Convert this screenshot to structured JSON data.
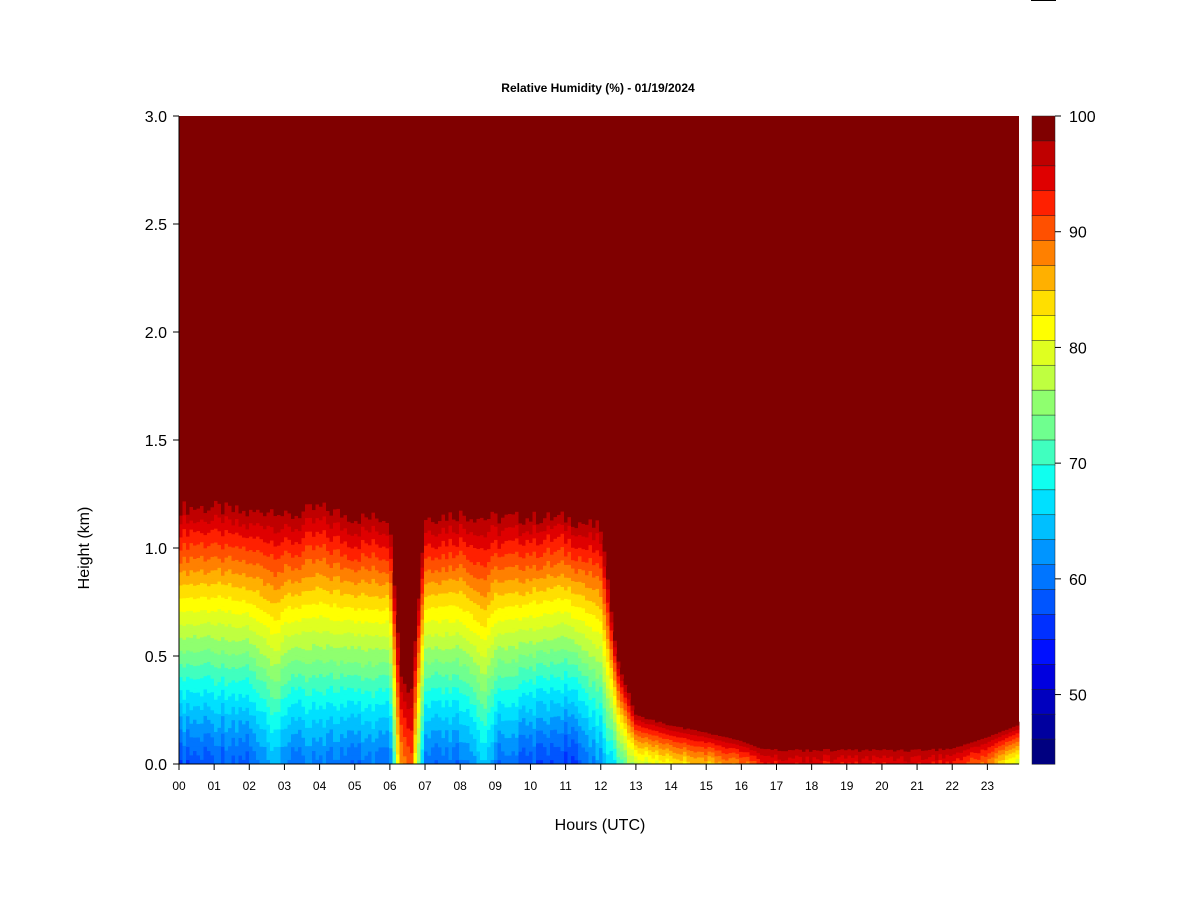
{
  "chart_data": {
    "type": "heatmap",
    "title": "Relative Humidity (%) - 01/19/2024",
    "xlabel": "Hours (UTC)",
    "ylabel": "Height (km)",
    "x_ticks": [
      "00",
      "01",
      "02",
      "03",
      "04",
      "05",
      "06",
      "07",
      "08",
      "09",
      "10",
      "11",
      "12",
      "13",
      "14",
      "15",
      "16",
      "17",
      "18",
      "19",
      "20",
      "21",
      "22",
      "23"
    ],
    "xlim": [
      0,
      23.9
    ],
    "y_ticks": [
      "0.0",
      "0.5",
      "1.0",
      "1.5",
      "2.0",
      "2.5",
      "3.0"
    ],
    "ylim": [
      0,
      3.0
    ],
    "colorbar": {
      "ticks": [
        "50",
        "60",
        "70",
        "80",
        "90",
        "100"
      ],
      "range": [
        44,
        100
      ],
      "levels": 24,
      "colors": [
        "#000080",
        "#00009f",
        "#0000bf",
        "#0000df",
        "#0010ff",
        "#0030ff",
        "#0055ff",
        "#0075ff",
        "#0095ff",
        "#00bfff",
        "#00e0ff",
        "#10ffef",
        "#40ffbf",
        "#6fff8f",
        "#8fff6f",
        "#bfff40",
        "#dfff20",
        "#ffff00",
        "#ffdf00",
        "#ffb000",
        "#ff8000",
        "#ff5000",
        "#ff2000",
        "#df0000",
        "#bf0000",
        "#800000"
      ]
    },
    "values_description": "",
    "boundary_layer": {
      "x": [
        0,
        1,
        2,
        2.8,
        3.0,
        4,
        5,
        6,
        6.3,
        6.6,
        7,
        8,
        8.7,
        9,
        10,
        11,
        12,
        12.5,
        13,
        14,
        15,
        16,
        16.5,
        17,
        18,
        19,
        20,
        21,
        22,
        23,
        23.9
      ],
      "top_km": [
        1.25,
        1.25,
        1.22,
        1.25,
        1.2,
        1.25,
        1.2,
        1.2,
        0.5,
        0.4,
        1.2,
        1.22,
        1.2,
        1.2,
        1.2,
        1.2,
        1.15,
        0.5,
        0.25,
        0.2,
        0.17,
        0.13,
        0.1,
        0.1,
        0.1,
        0.1,
        0.1,
        0.1,
        0.1,
        0.15,
        0.2
      ],
      "min_rh": [
        58,
        58,
        58,
        66,
        60,
        60,
        60,
        60,
        88,
        92,
        60,
        60,
        66,
        60,
        58,
        56,
        62,
        70,
        78,
        82,
        85,
        88,
        92,
        94,
        94,
        94,
        94,
        94,
        93,
        88,
        78
      ]
    }
  }
}
